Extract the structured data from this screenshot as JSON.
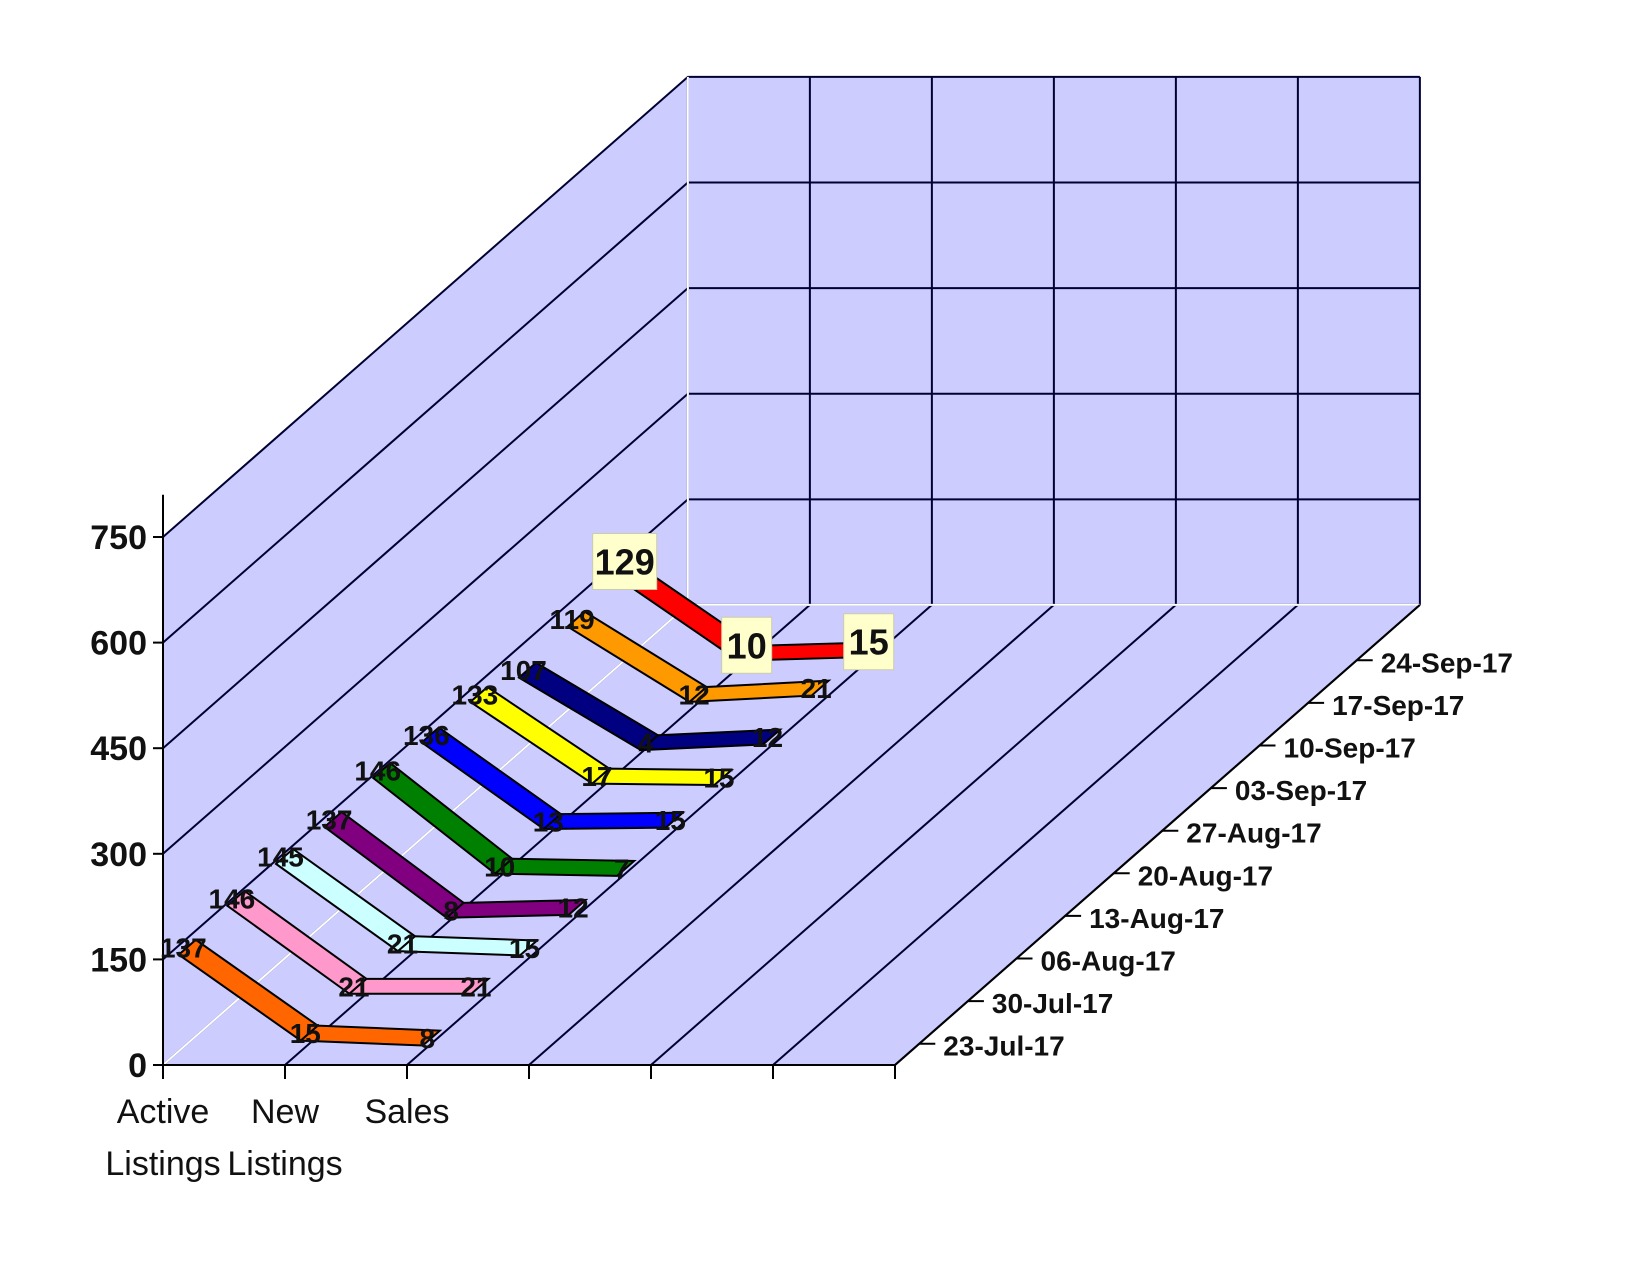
{
  "chart_data": {
    "type": "line",
    "style": "3d",
    "categories": [
      "Active Listings",
      "New Listings",
      "Sales"
    ],
    "category_label_lines": [
      [
        "Active",
        "Listings"
      ],
      [
        "New",
        "Listings"
      ],
      [
        "Sales"
      ]
    ],
    "yticks": [
      "0",
      "150",
      "300",
      "450",
      "600",
      "750"
    ],
    "ylim": [
      0,
      750
    ],
    "grid": true,
    "series": [
      {
        "name": "23-Jul-17",
        "values": [
          137,
          15,
          8
        ],
        "color": "#ff6600"
      },
      {
        "name": "30-Jul-17",
        "values": [
          146,
          21,
          21
        ],
        "color": "#ff99cc"
      },
      {
        "name": "06-Aug-17",
        "values": [
          145,
          21,
          15
        ],
        "color": "#ccffff"
      },
      {
        "name": "13-Aug-17",
        "values": [
          137,
          8,
          12
        ],
        "color": "#800080"
      },
      {
        "name": "20-Aug-17",
        "values": [
          146,
          10,
          7
        ],
        "color": "#008000"
      },
      {
        "name": "27-Aug-17",
        "values": [
          136,
          13,
          15
        ],
        "color": "#0000ff"
      },
      {
        "name": "03-Sep-17",
        "values": [
          133,
          17,
          15
        ],
        "color": "#ffff00"
      },
      {
        "name": "10-Sep-17",
        "values": [
          107,
          4,
          12
        ],
        "color": "#000080"
      },
      {
        "name": "17-Sep-17",
        "values": [
          119,
          12,
          21
        ],
        "color": "#ff9900"
      },
      {
        "name": "24-Sep-17",
        "values": [
          129,
          10,
          15
        ],
        "color": "#ff0000",
        "highlight": true
      }
    ],
    "colors": {
      "wall": "#ccccff",
      "grid": "#000033",
      "highlight_label_bg": "#ffffcc"
    }
  }
}
